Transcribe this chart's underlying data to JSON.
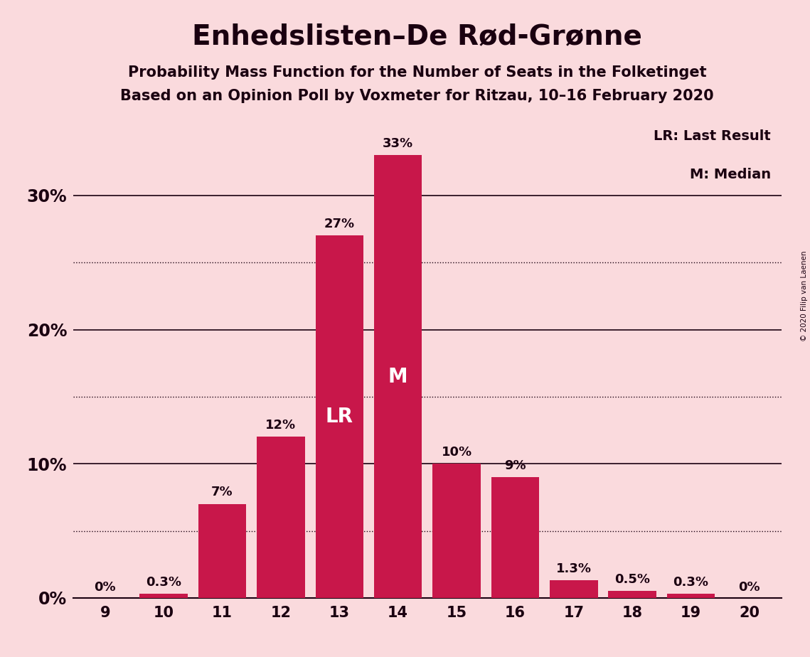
{
  "title": "Enhedslisten–De Rød-Grønne",
  "subtitle1": "Probability Mass Function for the Number of Seats in the Folketinget",
  "subtitle2": "Based on an Opinion Poll by Voxmeter for Ritzau, 10–16 February 2020",
  "copyright": "© 2020 Filip van Laenen",
  "seats": [
    9,
    10,
    11,
    12,
    13,
    14,
    15,
    16,
    17,
    18,
    19,
    20
  ],
  "probabilities": [
    0.0,
    0.3,
    7.0,
    12.0,
    27.0,
    33.0,
    10.0,
    9.0,
    1.3,
    0.5,
    0.3,
    0.0
  ],
  "bar_labels": [
    "0%",
    "0.3%",
    "7%",
    "12%",
    "27%",
    "33%",
    "10%",
    "9%",
    "1.3%",
    "0.5%",
    "0.3%",
    "0%"
  ],
  "bar_color": "#C8174A",
  "background_color": "#FADADD",
  "text_color": "#1a0010",
  "label_color_white": "#ffffff",
  "lr_seat": 13,
  "median_seat": 14,
  "lr_label": "LR",
  "median_label": "M",
  "legend_lr": "LR: Last Result",
  "legend_m": "M: Median",
  "yticks": [
    0,
    10,
    20,
    30
  ],
  "ytick_labels": [
    "0%",
    "10%",
    "20%",
    "30%"
  ],
  "ylim": [
    0,
    36
  ],
  "dotted_gridlines": [
    5,
    15,
    25
  ]
}
